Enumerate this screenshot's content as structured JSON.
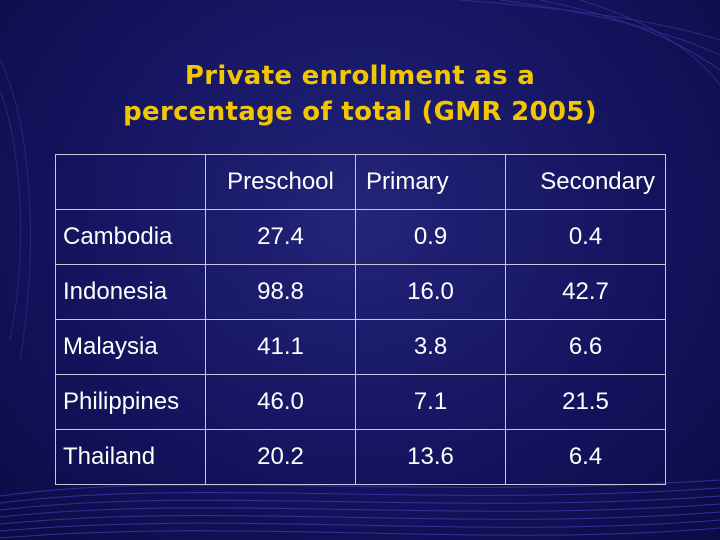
{
  "slide": {
    "title_line1": "Private enrollment as a",
    "title_line2": "percentage of total (GMR 2005)"
  },
  "colors": {
    "background": "#141460",
    "title": "#f2c700",
    "text": "#ffffff",
    "border": "#c8c8d8"
  },
  "table": {
    "columns": [
      "",
      "Preschool",
      "Primary",
      "Secondary"
    ],
    "rows": [
      {
        "country": "Cambodia",
        "preschool": "27.4",
        "primary": "0.9",
        "secondary": "0.4"
      },
      {
        "country": "Indonesia",
        "preschool": "98.8",
        "primary": "16.0",
        "secondary": "42.7"
      },
      {
        "country": "Malaysia",
        "preschool": "41.1",
        "primary": "3.8",
        "secondary": "6.6"
      },
      {
        "country": "Philippines",
        "preschool": "46.0",
        "primary": "7.1",
        "secondary": "21.5"
      },
      {
        "country": "Thailand",
        "preschool": "20.2",
        "primary": "13.6",
        "secondary": "6.4"
      }
    ]
  }
}
